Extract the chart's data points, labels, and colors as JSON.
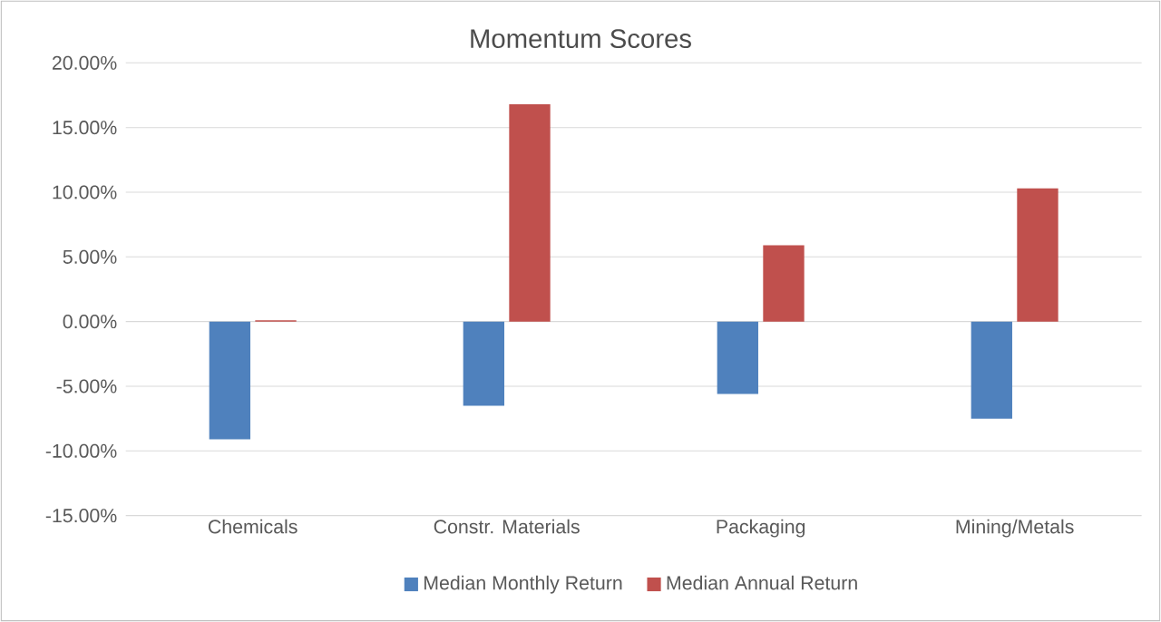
{
  "chart_data": {
    "type": "bar",
    "title": "Momentum Scores",
    "categories": [
      "Chemicals",
      "Constr. Materials",
      "Packaging",
      "Mining/Metals"
    ],
    "series": [
      {
        "name": "Median Monthly Return",
        "color": "#4f81bd",
        "values": [
          -9.1,
          -6.5,
          -5.6,
          -7.5
        ]
      },
      {
        "name": "Median Annual Return",
        "color": "#c0504d",
        "values": [
          0.1,
          16.8,
          5.9,
          10.3
        ]
      }
    ],
    "ylim": [
      -15,
      20
    ],
    "yticks": [
      {
        "value": -15,
        "label": "-15.00%"
      },
      {
        "value": -10,
        "label": "-10.00%"
      },
      {
        "value": -5,
        "label": "-5.00%"
      },
      {
        "value": 0,
        "label": "0.00%"
      },
      {
        "value": 5,
        "label": "5.00%"
      },
      {
        "value": 10,
        "label": "10.00%"
      },
      {
        "value": 15,
        "label": "15.00%"
      },
      {
        "value": 20,
        "label": "20.00%"
      }
    ],
    "grid": "y",
    "legend": "bottom"
  }
}
